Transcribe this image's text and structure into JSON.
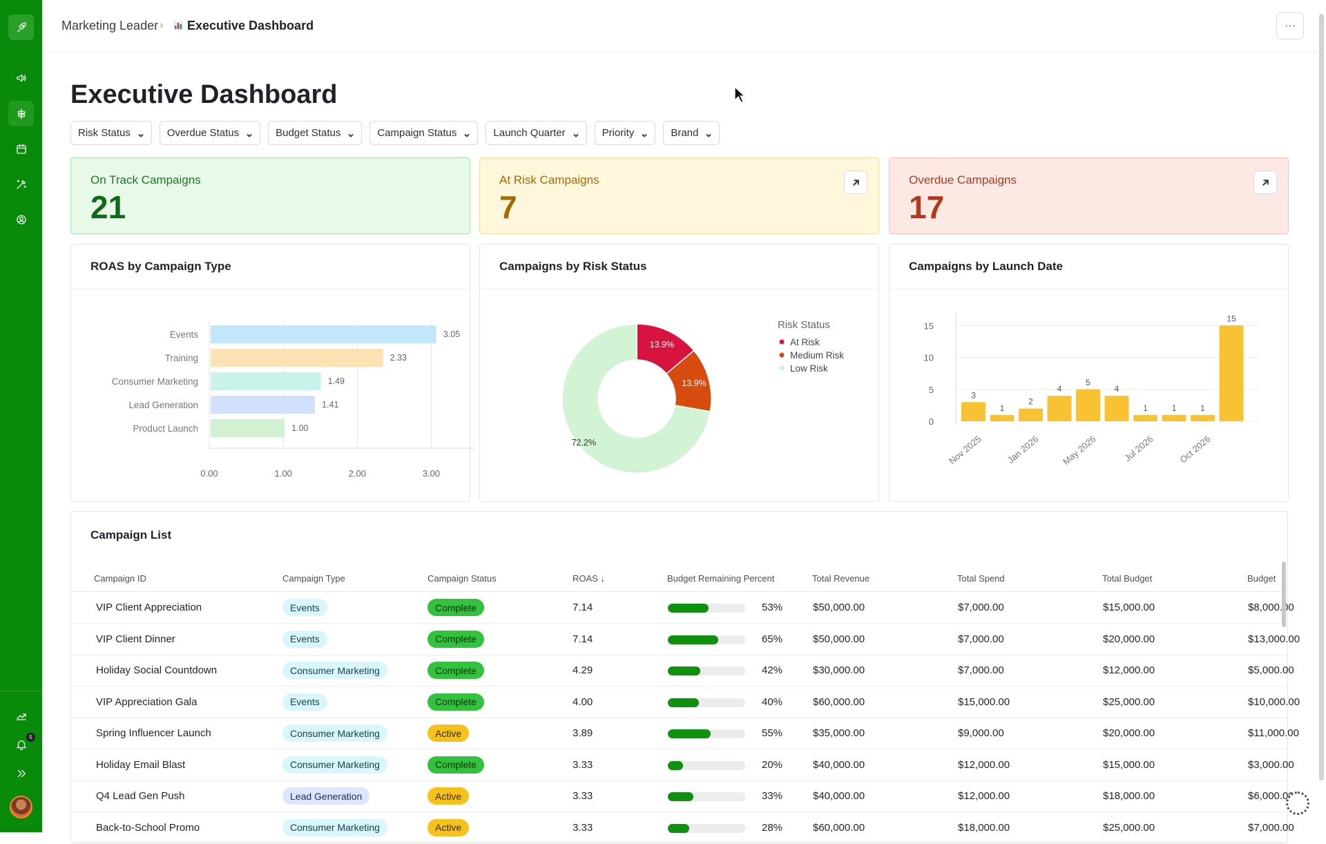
{
  "breadcrumb": {
    "parent": "Marketing Leader",
    "current": "Executive Dashboard"
  },
  "page_title": "Executive Dashboard",
  "filters": [
    "Risk Status",
    "Overdue Status",
    "Budget Status",
    "Campaign Status",
    "Launch Quarter",
    "Priority",
    "Brand"
  ],
  "kpis": {
    "on_track": {
      "label": "On Track Campaigns",
      "value": "21"
    },
    "at_risk": {
      "label": "At Risk Campaigns",
      "value": "7"
    },
    "overdue": {
      "label": "Overdue Campaigns",
      "value": "17"
    }
  },
  "sidebar": {
    "notification_count": "5"
  },
  "charts": {
    "roas_title": "ROAS by Campaign Type",
    "risk_title": "Campaigns by Risk Status",
    "launch_title": "Campaigns by Launch Date"
  },
  "chart_data": [
    {
      "type": "bar",
      "orientation": "horizontal",
      "title": "ROAS by Campaign Type",
      "categories": [
        "Events",
        "Training",
        "Consumer Marketing",
        "Lead Generation",
        "Product Launch"
      ],
      "values": [
        3.05,
        2.33,
        1.49,
        1.41,
        1.0
      ],
      "value_labels": [
        "3.05",
        "2.33",
        "1.49",
        "1.41",
        "1.00"
      ],
      "colors": [
        "#c2e7fb",
        "#fde3b4",
        "#c9f3ea",
        "#d3e0fb",
        "#d2f1d2"
      ],
      "xticks": [
        "0.00",
        "1.00",
        "2.00",
        "3.00"
      ],
      "xlim": [
        0,
        3.5
      ],
      "grid": true
    },
    {
      "type": "pie",
      "donut": true,
      "title": "Campaigns by Risk Status",
      "legend_title": "Risk Status",
      "legend_position": "right",
      "labels": [
        "At Risk",
        "Medium Risk",
        "Low Risk"
      ],
      "values": [
        13.9,
        13.9,
        72.2
      ],
      "value_labels": [
        "13.9%",
        "13.9%",
        "72.2%"
      ],
      "colors": [
        "#d9133f",
        "#d64b0e",
        "#d2f3d4"
      ]
    },
    {
      "type": "bar",
      "title": "Campaigns by Launch Date",
      "values": [
        3,
        1,
        2,
        4,
        5,
        4,
        1,
        1,
        1,
        15
      ],
      "xticks": [
        "Nov 2025",
        "Jan 2026",
        "May 2026",
        "Jul 2026",
        "Oct 2026"
      ],
      "yticks": [
        "0",
        "5",
        "10",
        "15"
      ],
      "ylim": [
        0,
        16
      ],
      "color": "#f8c232",
      "grid": true
    }
  ],
  "table": {
    "title": "Campaign List",
    "columns": [
      "Campaign ID",
      "Campaign Type",
      "Campaign Status",
      "ROAS",
      "Budget Remaining Percent",
      "Total Revenue",
      "Total Spend",
      "Total Budget",
      "Budget"
    ],
    "sort_indicator": "↓",
    "rows": [
      {
        "id": "VIP Client Appreciation",
        "type": "Events",
        "type_kind": "events",
        "status": "Complete",
        "status_kind": "complete",
        "roas": "7.14",
        "budget_pct": 53,
        "budget_pct_label": "53%",
        "revenue": "$50,000.00",
        "spend": "$7,000.00",
        "budget_total": "$15,000.00",
        "budget": "$8,000.00"
      },
      {
        "id": "VIP Client Dinner",
        "type": "Events",
        "type_kind": "events",
        "status": "Complete",
        "status_kind": "complete",
        "roas": "7.14",
        "budget_pct": 65,
        "budget_pct_label": "65%",
        "revenue": "$50,000.00",
        "spend": "$7,000.00",
        "budget_total": "$20,000.00",
        "budget": "$13,000.00"
      },
      {
        "id": "Holiday Social Countdown",
        "type": "Consumer Marketing",
        "type_kind": "consumer",
        "status": "Complete",
        "status_kind": "complete",
        "roas": "4.29",
        "budget_pct": 42,
        "budget_pct_label": "42%",
        "revenue": "$30,000.00",
        "spend": "$7,000.00",
        "budget_total": "$12,000.00",
        "budget": "$5,000.00"
      },
      {
        "id": "VIP Appreciation Gala",
        "type": "Events",
        "type_kind": "events",
        "status": "Complete",
        "status_kind": "complete",
        "roas": "4.00",
        "budget_pct": 40,
        "budget_pct_label": "40%",
        "revenue": "$60,000.00",
        "spend": "$15,000.00",
        "budget_total": "$25,000.00",
        "budget": "$10,000.00"
      },
      {
        "id": "Spring Influencer Launch",
        "type": "Consumer Marketing",
        "type_kind": "consumer",
        "status": "Active",
        "status_kind": "active",
        "roas": "3.89",
        "budget_pct": 55,
        "budget_pct_label": "55%",
        "revenue": "$35,000.00",
        "spend": "$9,000.00",
        "budget_total": "$20,000.00",
        "budget": "$11,000.00"
      },
      {
        "id": "Holiday Email Blast",
        "type": "Consumer Marketing",
        "type_kind": "consumer",
        "status": "Complete",
        "status_kind": "complete",
        "roas": "3.33",
        "budget_pct": 20,
        "budget_pct_label": "20%",
        "revenue": "$40,000.00",
        "spend": "$12,000.00",
        "budget_total": "$15,000.00",
        "budget": "$3,000.00"
      },
      {
        "id": "Q4 Lead Gen Push",
        "type": "Lead Generation",
        "type_kind": "lead",
        "status": "Active",
        "status_kind": "active",
        "roas": "3.33",
        "budget_pct": 33,
        "budget_pct_label": "33%",
        "revenue": "$40,000.00",
        "spend": "$12,000.00",
        "budget_total": "$18,000.00",
        "budget": "$6,000.00"
      },
      {
        "id": "Back-to-School Promo",
        "type": "Consumer Marketing",
        "type_kind": "consumer",
        "status": "Active",
        "status_kind": "active",
        "roas": "3.33",
        "budget_pct": 28,
        "budget_pct_label": "28%",
        "revenue": "$60,000.00",
        "spend": "$18,000.00",
        "budget_total": "$25,000.00",
        "budget": "$7,000.00"
      }
    ]
  }
}
